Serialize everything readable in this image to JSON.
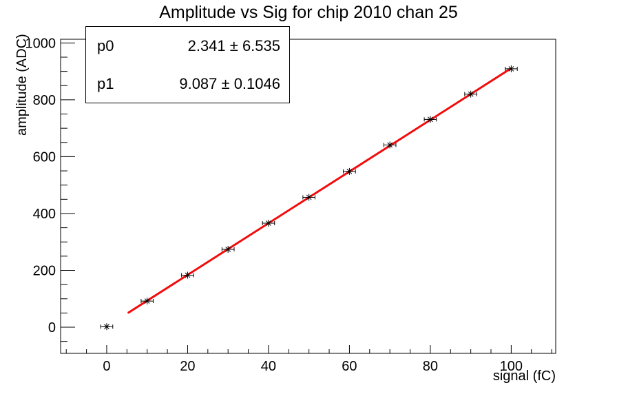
{
  "stats": {
    "rows": [
      {
        "name": "p0",
        "value": "2.341 ± 6.535"
      },
      {
        "name": "p1",
        "value": "9.087 ± 0.1046"
      }
    ]
  },
  "chart_data": {
    "type": "scatter",
    "title": "Amplitude vs Sig for chip 2010 chan 25",
    "xlabel": "signal (fC)",
    "ylabel": "amplitude (ADC)",
    "x": [
      0,
      10,
      20,
      30,
      40,
      50,
      60,
      70,
      80,
      90,
      100
    ],
    "y": [
      2,
      92,
      183,
      274,
      366,
      457,
      548,
      641,
      731,
      820,
      909
    ],
    "x_error_halfwidth": 1.5,
    "marker": "star",
    "marker_color": "#000000",
    "fit": {
      "type": "linear",
      "p0": 2.341,
      "p0_err": 6.535,
      "p1": 9.087,
      "p1_err": 0.1046,
      "x_start": 5.4,
      "x_end": 99.8,
      "color": "#f20c0c",
      "line_width": 3
    },
    "xlim": [
      -11.4,
      111.0
    ],
    "ylim": [
      -92,
      1013
    ],
    "x_major_ticks": [
      0,
      20,
      40,
      60,
      80,
      100
    ],
    "x_minor_step": 5,
    "y_major_ticks": [
      0,
      200,
      400,
      600,
      800,
      1000
    ],
    "y_minor_step": 50,
    "grid": false,
    "frame_color": "#000000",
    "background": "#ffffff"
  }
}
